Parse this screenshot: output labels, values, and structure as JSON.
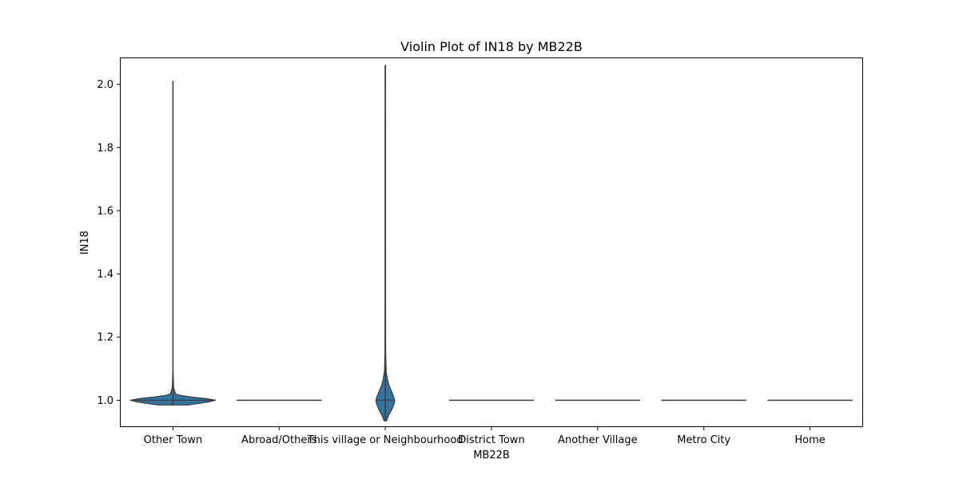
{
  "chart_data": {
    "type": "violin",
    "title": "Violin Plot of IN18 by MB22B",
    "xlabel": "MB22B",
    "ylabel": "IN18",
    "categories": [
      "Other Town",
      "Abroad/Others",
      "This village or Neighbourhood",
      "District Town",
      "Another Village",
      "Metro City",
      "Home"
    ],
    "ylim": [
      0.915,
      2.085
    ],
    "yticks": [
      1.0,
      1.2,
      1.4,
      1.6,
      1.8,
      2.0
    ],
    "ytick_labels": [
      "1.0",
      "1.2",
      "1.4",
      "1.6",
      "1.8",
      "2.0"
    ],
    "grid": false,
    "fill_color": "#3274a1",
    "edge_color": "#3d3d3d",
    "violins": [
      {
        "category": "Other Town",
        "min": 0.985,
        "max": 2.01,
        "median": 1.0,
        "density": [
          [
            0.985,
            0.35
          ],
          [
            0.99,
            0.6
          ],
          [
            0.995,
            0.85
          ],
          [
            1.0,
            1.0
          ],
          [
            1.005,
            0.8
          ],
          [
            1.01,
            0.45
          ],
          [
            1.015,
            0.18
          ],
          [
            1.02,
            0.06
          ],
          [
            1.04,
            0.015
          ],
          [
            1.1,
            0.0
          ],
          [
            2.01,
            0.0
          ]
        ]
      },
      {
        "category": "Abroad/Others",
        "min": 1.0,
        "max": 1.0,
        "median": 1.0,
        "density": []
      },
      {
        "category": "This village or Neighbourhood",
        "min": 0.935,
        "max": 2.06,
        "median": 1.0,
        "density": [
          [
            0.935,
            0.03
          ],
          [
            0.95,
            0.07
          ],
          [
            0.97,
            0.15
          ],
          [
            0.99,
            0.21
          ],
          [
            1.0,
            0.22
          ],
          [
            1.01,
            0.2
          ],
          [
            1.03,
            0.14
          ],
          [
            1.05,
            0.08
          ],
          [
            1.07,
            0.045
          ],
          [
            1.09,
            0.02
          ],
          [
            1.15,
            0.008
          ],
          [
            1.3,
            0.006
          ],
          [
            2.06,
            0.005
          ]
        ]
      },
      {
        "category": "District Town",
        "min": 1.0,
        "max": 1.0,
        "median": 1.0,
        "density": []
      },
      {
        "category": "Another Village",
        "min": 1.0,
        "max": 1.0,
        "median": 1.0,
        "density": []
      },
      {
        "category": "Metro City",
        "min": 1.0,
        "max": 1.0,
        "median": 1.0,
        "density": []
      },
      {
        "category": "Home",
        "min": 1.0,
        "max": 1.0,
        "median": 1.0,
        "density": []
      }
    ]
  }
}
